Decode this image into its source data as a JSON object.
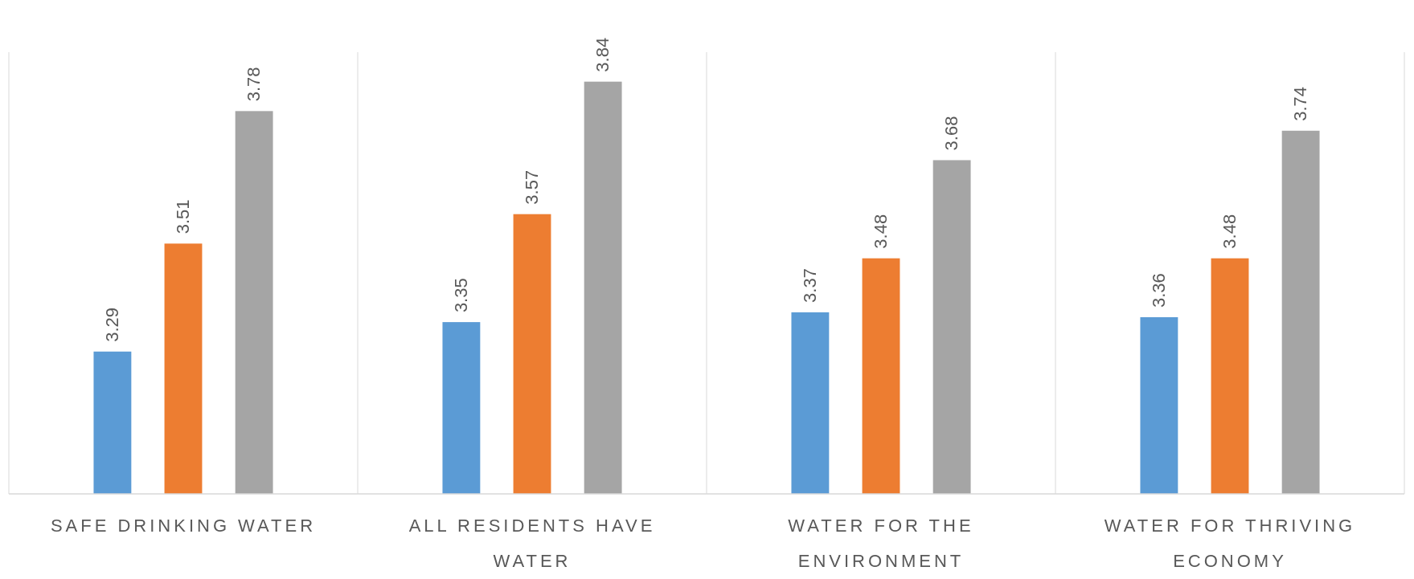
{
  "chart_data": {
    "type": "bar",
    "categories": [
      "SAFE DRINKING WATER",
      "ALL RESIDENTS HAVE WATER",
      "WATER FOR THE ENVIRONMENT",
      "WATER FOR THRIVING ECONOMY"
    ],
    "series": [
      {
        "color": "#5b9bd5",
        "values": [
          3.29,
          3.35,
          3.37,
          3.36
        ]
      },
      {
        "color": "#ed7d31",
        "values": [
          3.51,
          3.57,
          3.48,
          3.48
        ]
      },
      {
        "color": "#a5a5a5",
        "values": [
          3.78,
          3.84,
          3.68,
          3.74
        ]
      }
    ],
    "ylim": [
      3,
      3.9
    ],
    "data_labels": true,
    "grid": "x",
    "tick_labels": "x"
  }
}
